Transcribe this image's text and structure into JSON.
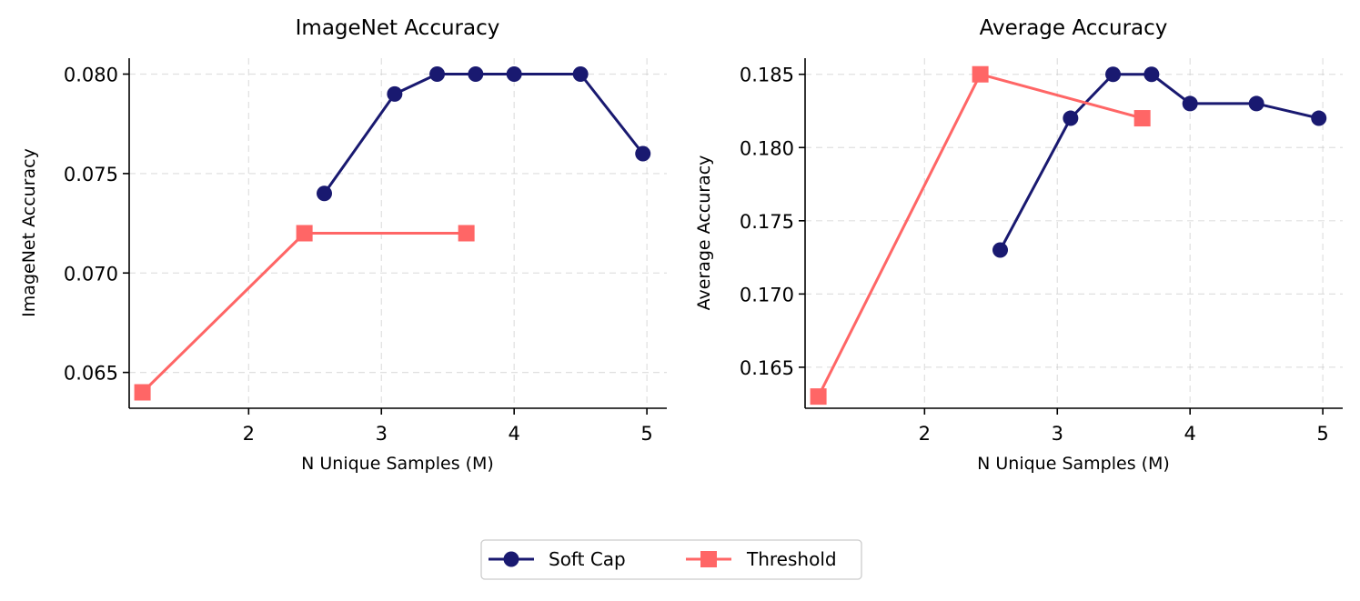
{
  "colors": {
    "soft_cap": "#191970",
    "threshold": "#FF6666"
  },
  "legend": {
    "items": [
      {
        "name": "Soft Cap",
        "marker": "circle",
        "color": "#191970"
      },
      {
        "name": "Threshold",
        "marker": "square",
        "color": "#FF6666"
      }
    ],
    "placement": "bottom-center"
  },
  "chart_data": [
    {
      "type": "line",
      "title": "ImageNet Accuracy",
      "xlabel": "N Unique Samples (M)",
      "ylabel": "ImageNet Accuracy",
      "xlim": [
        1.1,
        5.15
      ],
      "ylim": [
        0.0632,
        0.0808
      ],
      "xticks": [
        2,
        3,
        4,
        5
      ],
      "xtick_labels": [
        "2",
        "3",
        "4",
        "5"
      ],
      "yticks": [
        0.065,
        0.07,
        0.075,
        0.08
      ],
      "ytick_labels": [
        "0.065",
        "0.070",
        "0.075",
        "0.080"
      ],
      "grid": true,
      "series": [
        {
          "name": "Soft Cap",
          "marker": "circle",
          "color": "#191970",
          "x": [
            2.57,
            3.1,
            3.42,
            3.71,
            4.0,
            4.5,
            4.97
          ],
          "y": [
            0.074,
            0.079,
            0.08,
            0.08,
            0.08,
            0.08,
            0.076
          ]
        },
        {
          "name": "Threshold",
          "marker": "square",
          "color": "#FF6666",
          "x": [
            1.2,
            2.42,
            3.64
          ],
          "y": [
            0.064,
            0.072,
            0.072
          ]
        }
      ]
    },
    {
      "type": "line",
      "title": "Average Accuracy",
      "xlabel": "N Unique Samples (M)",
      "ylabel": "Average Accuracy",
      "xlim": [
        1.1,
        5.15
      ],
      "ylim": [
        0.1622,
        0.1861
      ],
      "xticks": [
        2,
        3,
        4,
        5
      ],
      "xtick_labels": [
        "2",
        "3",
        "4",
        "5"
      ],
      "yticks": [
        0.165,
        0.17,
        0.175,
        0.18,
        0.185
      ],
      "ytick_labels": [
        "0.165",
        "0.170",
        "0.175",
        "0.180",
        "0.185"
      ],
      "grid": true,
      "series": [
        {
          "name": "Soft Cap",
          "marker": "circle",
          "color": "#191970",
          "x": [
            2.57,
            3.1,
            3.42,
            3.71,
            4.0,
            4.5,
            4.97
          ],
          "y": [
            0.173,
            0.182,
            0.185,
            0.185,
            0.183,
            0.183,
            0.182
          ]
        },
        {
          "name": "Threshold",
          "marker": "square",
          "color": "#FF6666",
          "x": [
            1.2,
            2.42,
            3.64
          ],
          "y": [
            0.163,
            0.185,
            0.182
          ]
        }
      ]
    }
  ]
}
